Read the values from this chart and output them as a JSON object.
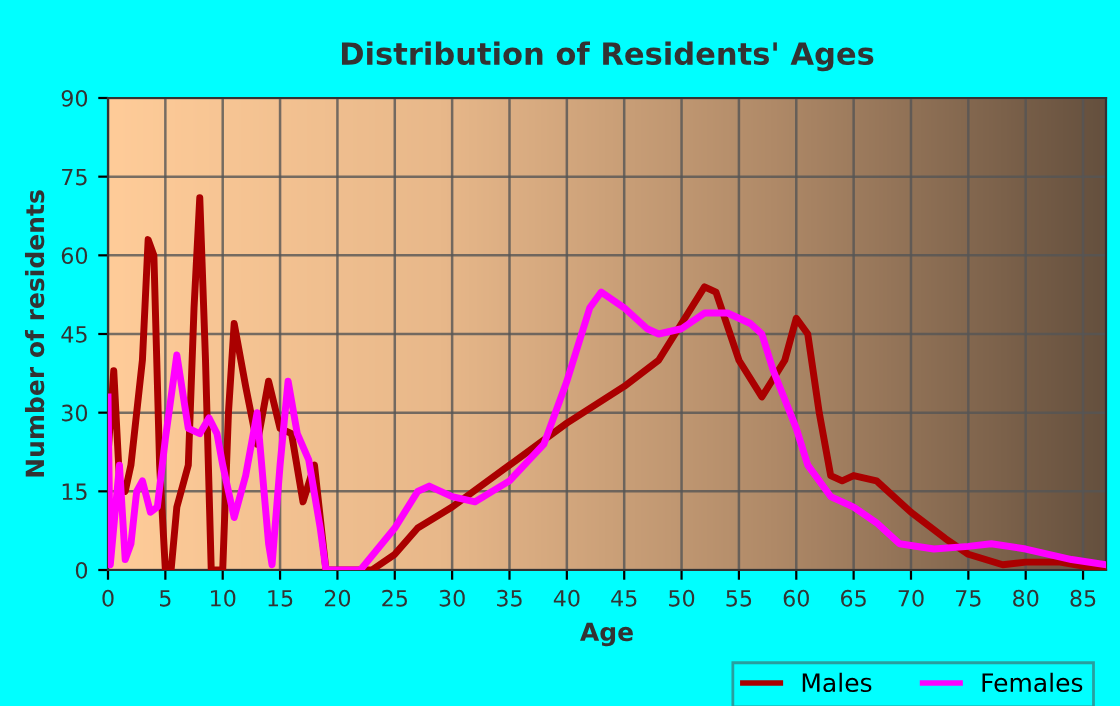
{
  "chart_data": {
    "type": "line",
    "title": "Distribution of Residents' Ages",
    "xlabel": "Age",
    "ylabel": "Number of residents",
    "series": [
      {
        "name": "Males",
        "color": "#aa0000",
        "x": [
          0,
          0.5,
          1,
          1.5,
          2,
          3,
          3.5,
          4,
          4.5,
          5,
          5.5,
          6,
          7,
          7.5,
          8,
          8.5,
          9,
          10,
          10.5,
          11,
          12,
          13,
          14,
          15,
          16,
          17,
          18,
          18.5,
          19,
          22,
          23,
          25,
          27,
          30,
          35,
          40,
          45,
          48,
          50,
          52,
          53,
          55,
          57,
          59,
          60,
          61,
          62,
          63,
          64,
          65,
          67,
          70,
          73,
          75,
          78,
          80,
          83,
          87
        ],
        "values": [
          22,
          38,
          17,
          15,
          20,
          40,
          63,
          60,
          20,
          0,
          0,
          12,
          20,
          50,
          71,
          40,
          0,
          0,
          30,
          47,
          35,
          24,
          36,
          27,
          26,
          13,
          20,
          10,
          0,
          0,
          0,
          3,
          8,
          12,
          20,
          28,
          35,
          40,
          47,
          54,
          53,
          40,
          33,
          40,
          48,
          45,
          30,
          18,
          17,
          18,
          17,
          11,
          6,
          3,
          1,
          1.5,
          1.5,
          0
        ]
      },
      {
        "name": "Females",
        "color": "#ff00ff",
        "x": [
          0,
          0.2,
          1,
          1.5,
          2,
          2.5,
          3,
          3.7,
          4.3,
          5,
          6,
          7,
          8,
          8.8,
          9.5,
          10,
          11,
          12,
          13,
          14,
          14.3,
          15,
          15.7,
          16.5,
          17.5,
          18.5,
          19,
          22,
          25,
          27,
          28,
          30,
          32,
          35,
          38,
          40,
          42,
          43,
          45,
          47,
          48,
          50,
          52,
          54,
          56,
          57,
          58,
          60,
          61,
          63,
          65,
          67,
          69,
          72,
          75,
          77,
          80,
          84,
          87
        ],
        "values": [
          33,
          1,
          20,
          2,
          5,
          15,
          17,
          11,
          12,
          25,
          41,
          27,
          26,
          29,
          26,
          20,
          10,
          18,
          30,
          5,
          1,
          20,
          36,
          26,
          21,
          8,
          0,
          0,
          8,
          15,
          16,
          14,
          13,
          17,
          24,
          36,
          50,
          53,
          50,
          46,
          45,
          46,
          49,
          49,
          47,
          45,
          38,
          27,
          20,
          14,
          12,
          9,
          5,
          4,
          4.5,
          5,
          4,
          2,
          1
        ]
      }
    ],
    "xlim": [
      0,
      87
    ],
    "ylim": [
      0,
      90
    ],
    "xticks": [
      0,
      5,
      10,
      15,
      20,
      25,
      30,
      35,
      40,
      45,
      50,
      55,
      60,
      65,
      70,
      75,
      80,
      85
    ],
    "yticks": [
      0,
      15,
      30,
      45,
      60,
      75,
      90
    ],
    "grid": true,
    "legend": "bottom",
    "marker": "none",
    "line_style": "solid"
  }
}
